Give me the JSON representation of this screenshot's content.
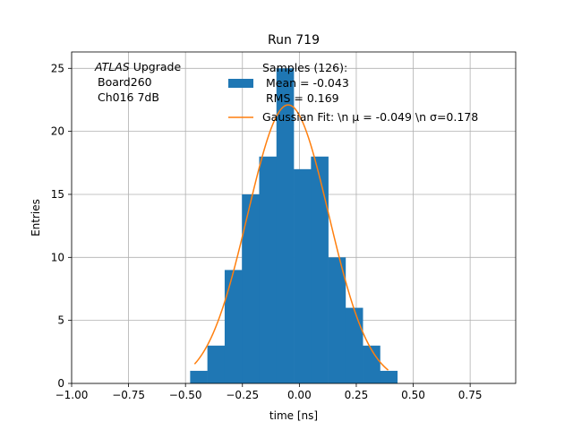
{
  "chart_data": {
    "type": "bar",
    "title": "Run 719",
    "xlabel": "time [ns]",
    "ylabel": "Entries",
    "xlim": [
      -1.0,
      0.95
    ],
    "ylim": [
      0,
      26.3
    ],
    "xticks": [
      "−1.00",
      "−0.75",
      "−0.50",
      "−0.25",
      "0.00",
      "0.25",
      "0.50",
      "0.75"
    ],
    "xtick_values": [
      -1.0,
      -0.75,
      -0.5,
      -0.25,
      0.0,
      0.25,
      0.5,
      0.75
    ],
    "yticks": [
      "0",
      "5",
      "10",
      "15",
      "20",
      "25"
    ],
    "ytick_values": [
      0,
      5,
      10,
      15,
      20,
      25
    ],
    "grid": true,
    "annotation": {
      "italic": "ATLAS",
      "line1_rest": " Upgrade",
      "line2": "Board260",
      "line3": "Ch016 7dB"
    },
    "legend_placement": "top-center",
    "legend": {
      "hist_line1": "Samples (126):",
      "hist_line2": "Mean = -0.043",
      "hist_line3": "RMS = 0.169",
      "fit_label": "Gaussian Fit: \\n μ = -0.049 \\n σ=0.178"
    },
    "histogram": {
      "name": "Samples (126):",
      "color": "#1f77b4",
      "bin_width": 0.0758,
      "bin_lefts": [
        -0.4796,
        -0.4038,
        -0.328,
        -0.2522,
        -0.1764,
        -0.1006,
        -0.0248,
        0.051,
        0.1268,
        0.2026,
        0.2784,
        0.3542
      ],
      "counts": [
        1,
        3,
        9,
        15,
        18,
        25,
        17,
        18,
        10,
        6,
        3,
        1
      ]
    },
    "fit": {
      "color": "#ff7f0e",
      "amplitude": 22.1,
      "mu": -0.049,
      "sigma": 0.178,
      "x_range": [
        -0.46,
        0.39
      ]
    }
  }
}
